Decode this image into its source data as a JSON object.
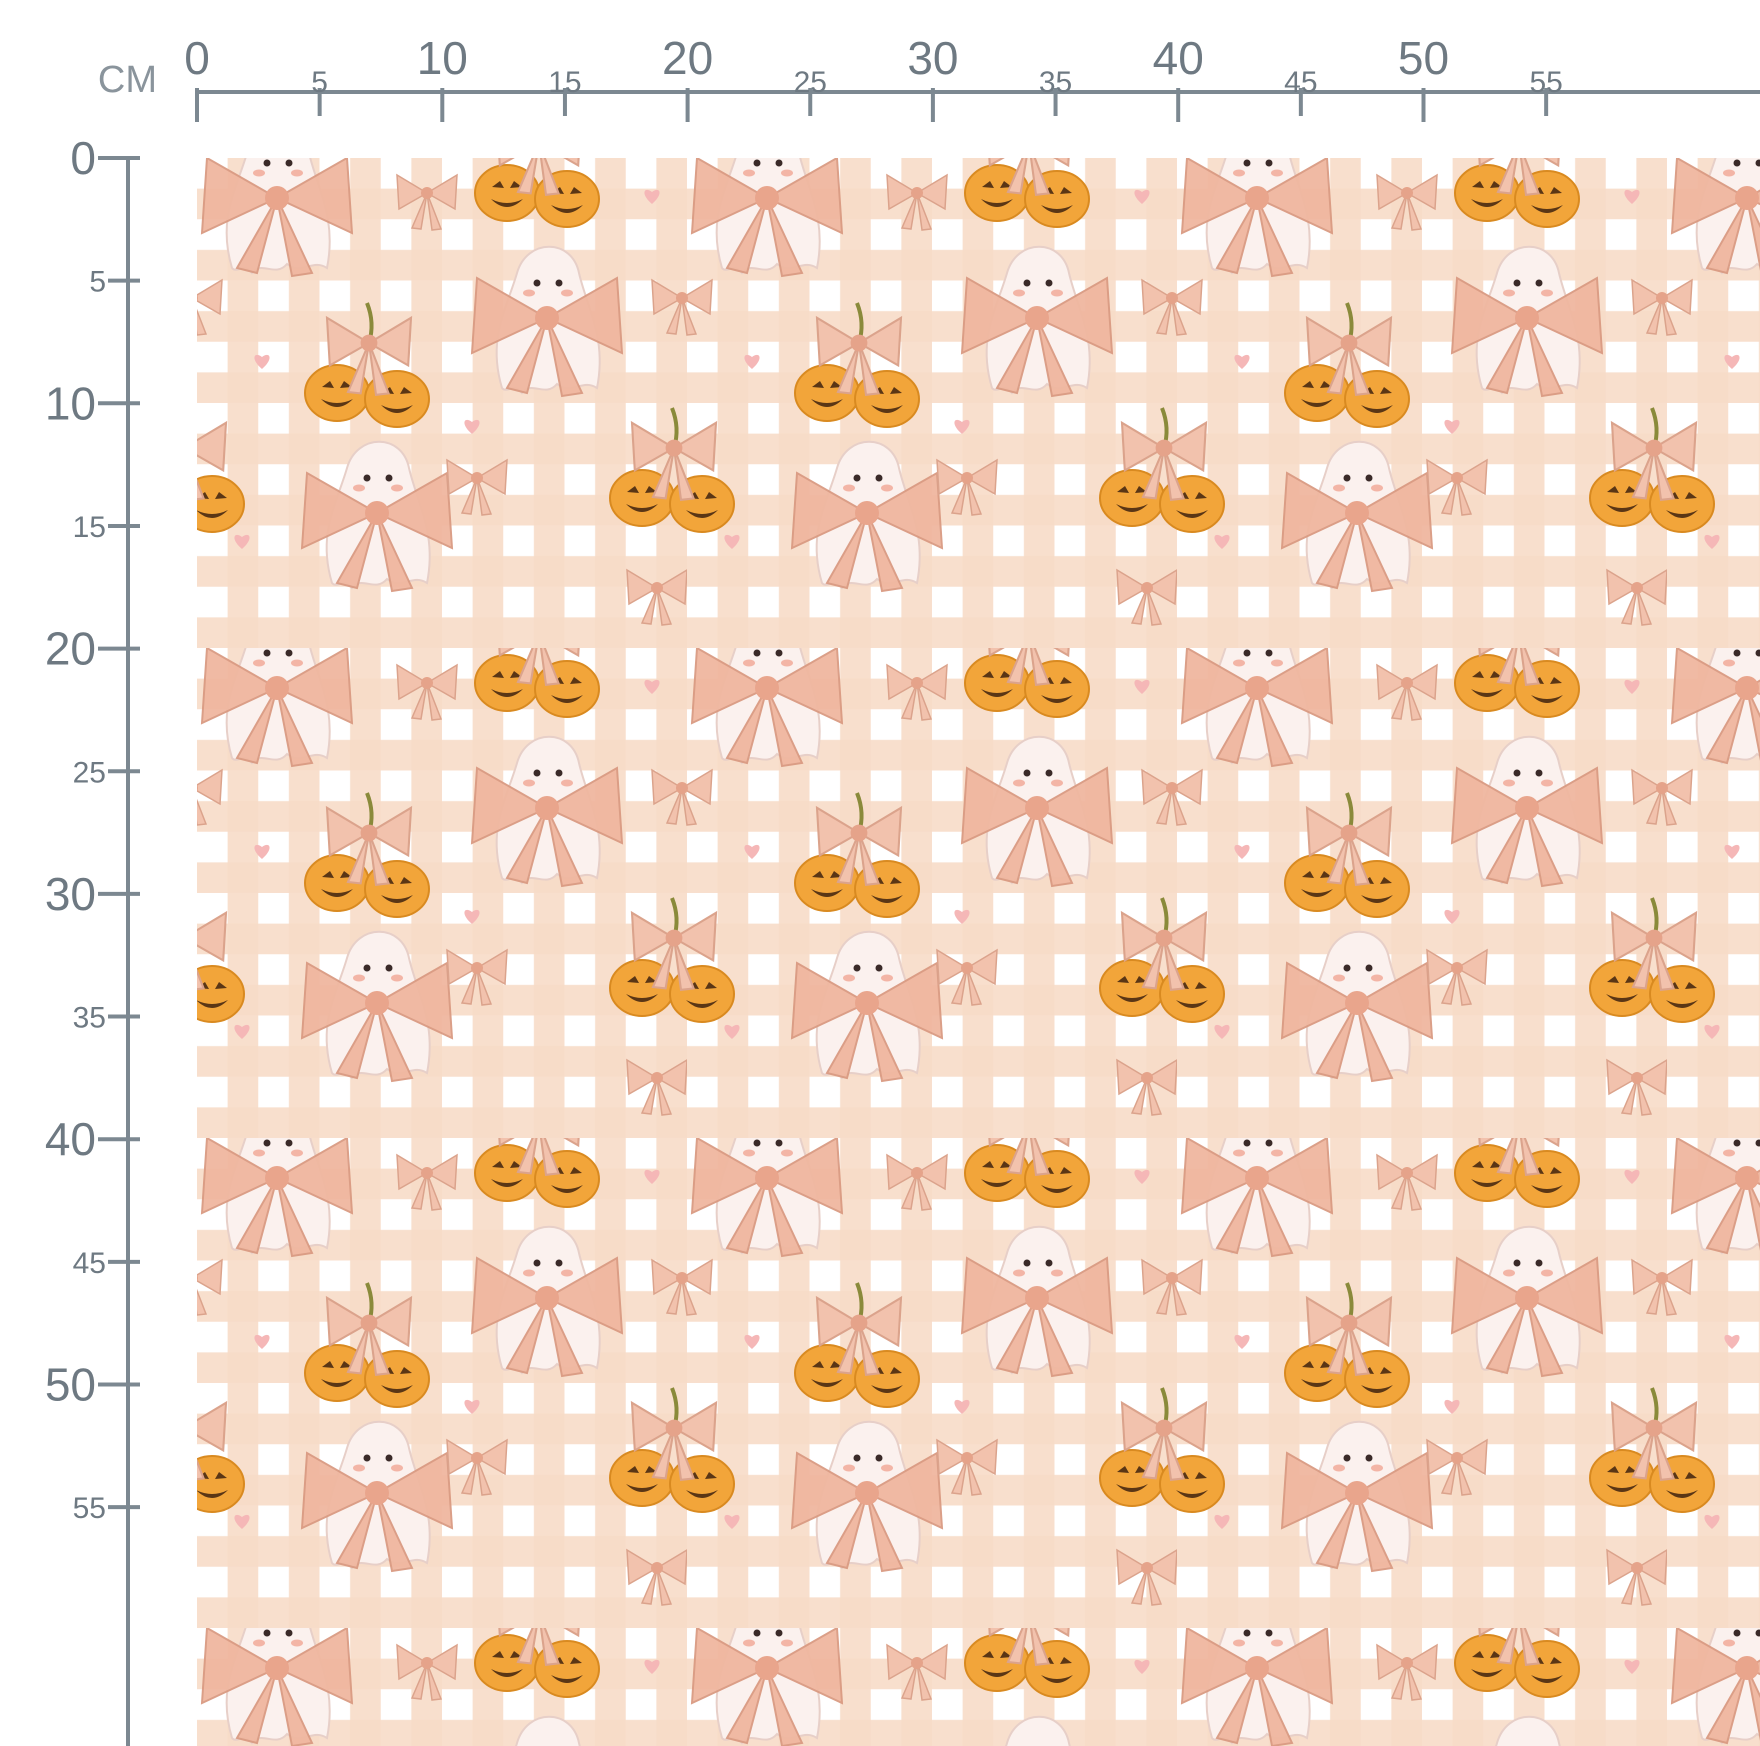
{
  "ruler": {
    "unit": "CM",
    "top": {
      "ticks": [
        0,
        5,
        10,
        15,
        20,
        25,
        30,
        35,
        40,
        45,
        50,
        55
      ]
    },
    "left": {
      "ticks": [
        0,
        5,
        10,
        15,
        20,
        25,
        30,
        35,
        40,
        45,
        50,
        55
      ]
    }
  }
}
